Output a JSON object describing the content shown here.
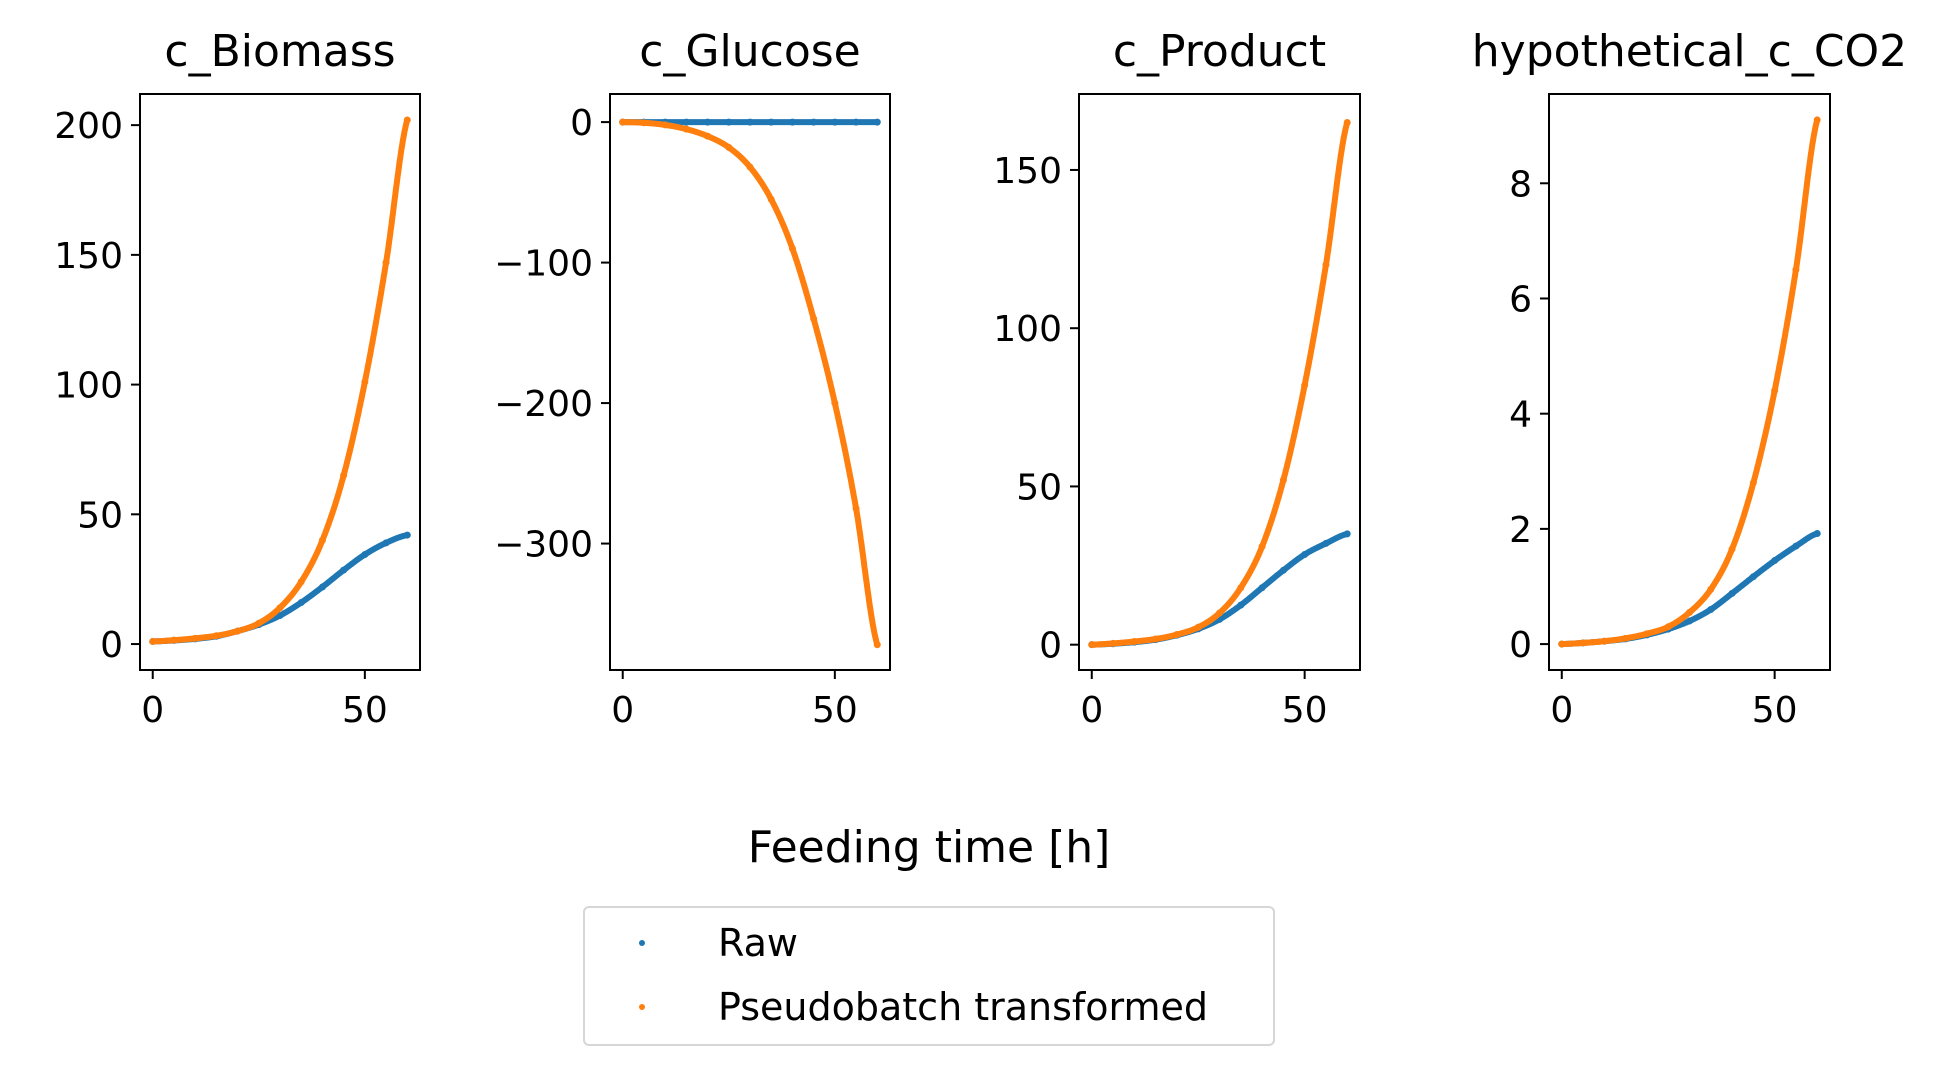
{
  "figure": {
    "xlabel": "Feeding time [h]",
    "legend": {
      "placement": "bottom-center",
      "entries": [
        {
          "label": "Raw",
          "color": "#1f77b4"
        },
        {
          "label": "Pseudobatch transformed",
          "color": "#ff7f0e"
        }
      ]
    }
  },
  "chart_data": [
    {
      "type": "scatter",
      "title": "c_Biomass",
      "xlim": [
        -3,
        63
      ],
      "ylim": [
        -10,
        212
      ],
      "xticks": [
        0,
        50
      ],
      "yticks": [
        0,
        50,
        100,
        150,
        200
      ],
      "series": [
        {
          "name": "Raw",
          "color": "#1f77b4",
          "x": [
            0,
            5,
            10,
            15,
            20,
            25,
            30,
            35,
            40,
            45,
            50,
            55,
            60
          ],
          "y": [
            1,
            1.4,
            2,
            3,
            5,
            7.5,
            11,
            16,
            22,
            28.5,
            34.5,
            39,
            42
          ]
        },
        {
          "name": "Pseudobatch transformed",
          "color": "#ff7f0e",
          "x": [
            0,
            5,
            10,
            15,
            20,
            25,
            30,
            35,
            40,
            45,
            50,
            55,
            60
          ],
          "y": [
            1,
            1.5,
            2.2,
            3.2,
            5,
            8,
            14,
            24,
            40,
            65,
            101,
            147,
            202
          ]
        }
      ]
    },
    {
      "type": "scatter",
      "title": "c_Glucose",
      "xlim": [
        -3,
        63
      ],
      "ylim": [
        -390,
        20
      ],
      "xticks": [
        0,
        50
      ],
      "yticks": [
        0,
        -100,
        -200,
        -300
      ],
      "series": [
        {
          "name": "Raw",
          "color": "#1f77b4",
          "x": [
            0,
            5,
            10,
            15,
            20,
            25,
            30,
            35,
            40,
            45,
            50,
            55,
            60
          ],
          "y": [
            0,
            0,
            0,
            0,
            0,
            0,
            0,
            0,
            0,
            0,
            0,
            0,
            0
          ]
        },
        {
          "name": "Pseudobatch transformed",
          "color": "#ff7f0e",
          "x": [
            0,
            5,
            10,
            15,
            20,
            25,
            30,
            35,
            40,
            45,
            50,
            55,
            60
          ],
          "y": [
            0,
            -0.5,
            -2,
            -5,
            -10,
            -18,
            -32,
            -55,
            -90,
            -140,
            -200,
            -275,
            -372
          ]
        }
      ]
    },
    {
      "type": "scatter",
      "title": "c_Product",
      "xlim": [
        -3,
        63
      ],
      "ylim": [
        -8,
        174
      ],
      "xticks": [
        0,
        50
      ],
      "yticks": [
        0,
        50,
        100,
        150
      ],
      "series": [
        {
          "name": "Raw",
          "color": "#1f77b4",
          "x": [
            0,
            5,
            10,
            15,
            20,
            25,
            30,
            35,
            40,
            45,
            50,
            55,
            60
          ],
          "y": [
            0,
            0.3,
            0.8,
            1.6,
            3,
            5,
            8,
            12.5,
            18,
            23.5,
            28.5,
            32,
            35
          ]
        },
        {
          "name": "Pseudobatch transformed",
          "color": "#ff7f0e",
          "x": [
            0,
            5,
            10,
            15,
            20,
            25,
            30,
            35,
            40,
            45,
            50,
            55,
            60
          ],
          "y": [
            0,
            0.4,
            1,
            1.8,
            3.2,
            5.5,
            10,
            18,
            31,
            52,
            82,
            120,
            165
          ]
        }
      ]
    },
    {
      "type": "scatter",
      "title": "hypothetical_c_CO2",
      "xlim": [
        -3,
        63
      ],
      "ylim": [
        -0.45,
        9.55
      ],
      "xticks": [
        0,
        50
      ],
      "yticks": [
        0,
        2,
        4,
        6,
        8
      ],
      "series": [
        {
          "name": "Raw",
          "color": "#1f77b4",
          "x": [
            0,
            5,
            10,
            15,
            20,
            25,
            30,
            35,
            40,
            45,
            50,
            55,
            60
          ],
          "y": [
            0,
            0.02,
            0.05,
            0.09,
            0.16,
            0.26,
            0.4,
            0.6,
            0.88,
            1.17,
            1.45,
            1.7,
            1.92
          ]
        },
        {
          "name": "Pseudobatch transformed",
          "color": "#ff7f0e",
          "x": [
            0,
            5,
            10,
            15,
            20,
            25,
            30,
            35,
            40,
            45,
            50,
            55,
            60
          ],
          "y": [
            0,
            0.02,
            0.05,
            0.1,
            0.18,
            0.3,
            0.55,
            0.95,
            1.65,
            2.8,
            4.4,
            6.5,
            9.1
          ]
        }
      ]
    }
  ]
}
